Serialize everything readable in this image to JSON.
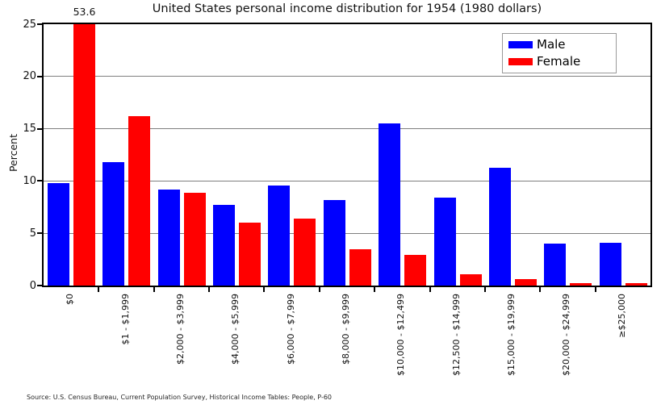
{
  "chart_data": {
    "type": "bar",
    "title": "United States personal income distribution for 1954 (1980 dollars)",
    "ylabel": "Percent",
    "xlabel": "",
    "ylim": [
      0,
      25
    ],
    "yticks": [
      0,
      5,
      10,
      15,
      20,
      25
    ],
    "ygrid": [
      5,
      10,
      15,
      20
    ],
    "grid": "horizontal",
    "legend_position": "upper right",
    "categories": [
      "$0",
      "$1 - $1,999",
      "$2,000 - $3,999",
      "$4,000 - $5,999",
      "$6,000 - $7,999",
      "$8,000 - $9,999",
      "$10,000 - $12,499",
      "$12,500 - $14,999",
      "$15,000 - $19,999",
      "$20,000 - $24,999",
      "≥$25,000"
    ],
    "series": [
      {
        "name": "Male",
        "color": "#0000ff",
        "values": [
          9.8,
          11.8,
          9.2,
          7.7,
          9.6,
          8.2,
          15.5,
          8.4,
          11.3,
          4.0,
          4.1
        ]
      },
      {
        "name": "Female",
        "color": "#ff0000",
        "values": [
          53.6,
          16.2,
          8.9,
          6.0,
          6.4,
          3.5,
          2.9,
          1.1,
          0.6,
          0.2,
          0.2
        ]
      }
    ],
    "annotation": {
      "text": "53.6"
    },
    "source": "Source: U.S. Census Bureau, Current Population Survey, Historical Income Tables: People, P-60"
  }
}
